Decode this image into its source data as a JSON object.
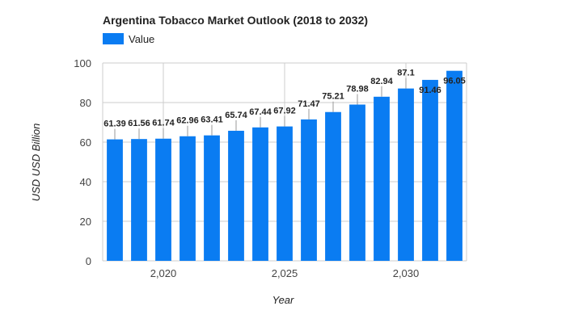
{
  "chart_data": {
    "type": "bar",
    "title": "Argentina Tobacco Market Outlook (2018 to 2032)",
    "xlabel": "Year",
    "ylabel": "USD USD Billion",
    "legend": {
      "position": "top-left",
      "entries": [
        "Value"
      ]
    },
    "grid": true,
    "ylim": [
      0,
      100
    ],
    "yticks": [
      0,
      20,
      40,
      60,
      80,
      100
    ],
    "xticks": [
      2020,
      2025,
      2030
    ],
    "xtick_labels": [
      "2,020",
      "2,025",
      "2,030"
    ],
    "categories": [
      2018,
      2019,
      2020,
      2021,
      2022,
      2023,
      2024,
      2025,
      2026,
      2027,
      2028,
      2029,
      2030,
      2031,
      2032
    ],
    "series": [
      {
        "name": "Value",
        "color": "#0a7cf2",
        "values": [
          61.39,
          61.56,
          61.74,
          62.96,
          63.41,
          65.74,
          67.44,
          67.92,
          71.47,
          75.21,
          78.98,
          82.94,
          87.1,
          91.46,
          96.05
        ],
        "labels": [
          "61.39",
          "61.56",
          "61.74",
          "62.96",
          "63.41",
          "65.74",
          "67.44",
          "67.92",
          "71.47",
          "75.21",
          "78.98",
          "82.94",
          "87.1",
          "91.46",
          "96.05"
        ]
      }
    ]
  }
}
